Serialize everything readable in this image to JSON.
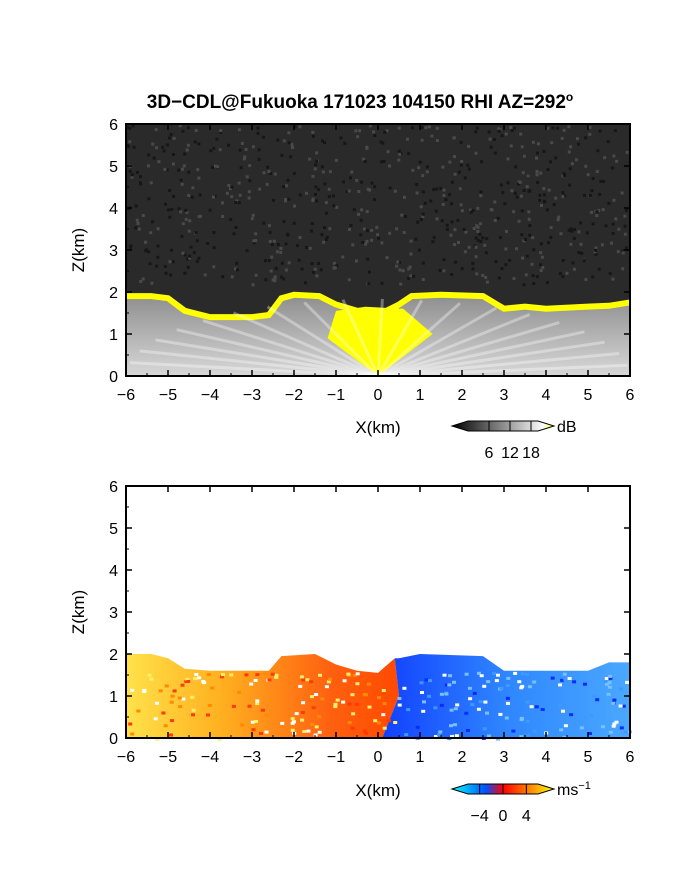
{
  "title": {
    "main": "3D−CDL@Fukuoka 171023 104150 RHI AZ=292",
    "superscript": "o"
  },
  "chart_data": [
    {
      "name": "top-panel",
      "type": "heatmap",
      "title": "3D−CDL@Fukuoka 171023 104150 RHI AZ=292°",
      "xlabel": "X(km)",
      "ylabel": "Z(km)",
      "xlim": [
        -6,
        6
      ],
      "ylim": [
        0,
        6
      ],
      "x_ticks": [
        -6,
        -5,
        -4,
        -3,
        -2,
        -1,
        0,
        1,
        2,
        3,
        4,
        5,
        6
      ],
      "x_tick_labels": [
        "−6",
        "−5",
        "−4",
        "−3",
        "−2",
        "−1",
        "0",
        "1",
        "2",
        "3",
        "4",
        "5",
        "6"
      ],
      "y_ticks": [
        0,
        1,
        2,
        3,
        4,
        5,
        6
      ],
      "y_tick_labels": [
        "0",
        "1",
        "2",
        "3",
        "4",
        "5",
        "6"
      ],
      "background_color": "#2a2a2a",
      "colorbar": {
        "unit": "dB",
        "range": [
          0,
          20
        ],
        "tick_values": [
          6,
          12,
          18
        ],
        "tick_labels": [
          "6",
          "12",
          "18"
        ],
        "colors": [
          "#000000",
          "#808080",
          "#ffffff",
          "#ffff00"
        ]
      },
      "signal_top_km": [
        [
          -6.0,
          1.95
        ],
        [
          -5.4,
          1.95
        ],
        [
          -5.0,
          1.9
        ],
        [
          -4.6,
          1.6
        ],
        [
          -4.0,
          1.45
        ],
        [
          -3.6,
          1.45
        ],
        [
          -3.0,
          1.45
        ],
        [
          -2.6,
          1.5
        ],
        [
          -2.3,
          1.9
        ],
        [
          -2.0,
          1.98
        ],
        [
          -1.4,
          1.95
        ],
        [
          -1.0,
          1.75
        ],
        [
          -0.5,
          1.6
        ],
        [
          0.0,
          1.5
        ],
        [
          0.5,
          1.75
        ],
        [
          0.8,
          1.95
        ],
        [
          1.5,
          1.98
        ],
        [
          2.5,
          1.95
        ],
        [
          3.0,
          1.65
        ],
        [
          3.5,
          1.7
        ],
        [
          4.0,
          1.65
        ],
        [
          5.0,
          1.7
        ],
        [
          5.5,
          1.72
        ],
        [
          6.0,
          1.8
        ]
      ]
    },
    {
      "name": "bottom-panel",
      "type": "heatmap",
      "xlabel": "X(km)",
      "ylabel": "Z(km)",
      "xlim": [
        -6,
        6
      ],
      "ylim": [
        0,
        6
      ],
      "x_ticks": [
        -6,
        -5,
        -4,
        -3,
        -2,
        -1,
        0,
        1,
        2,
        3,
        4,
        5,
        6
      ],
      "x_tick_labels": [
        "−6",
        "−5",
        "−4",
        "−3",
        "−2",
        "−1",
        "0",
        "1",
        "2",
        "3",
        "4",
        "5",
        "6"
      ],
      "y_ticks": [
        0,
        1,
        2,
        3,
        4,
        5,
        6
      ],
      "y_tick_labels": [
        "0",
        "1",
        "2",
        "3",
        "4",
        "5",
        "6"
      ],
      "background_color": "#ffffff",
      "colorbar": {
        "unit": "ms",
        "unit_superscript": "−1",
        "range": [
          -6,
          6
        ],
        "tick_values": [
          -4,
          0,
          4
        ],
        "tick_labels": [
          "−4",
          "0",
          "4"
        ],
        "colors": [
          "#00ffff",
          "#0050ff",
          "#ff0000",
          "#ffff00"
        ]
      },
      "signal_top_km": [
        [
          -6.0,
          2.0
        ],
        [
          -5.4,
          2.0
        ],
        [
          -5.0,
          1.9
        ],
        [
          -4.6,
          1.65
        ],
        [
          -4.0,
          1.6
        ],
        [
          -3.0,
          1.6
        ],
        [
          -2.6,
          1.6
        ],
        [
          -2.3,
          1.95
        ],
        [
          -1.5,
          2.0
        ],
        [
          -1.0,
          1.75
        ],
        [
          -0.5,
          1.6
        ],
        [
          0.0,
          1.55
        ],
        [
          0.5,
          1.9
        ],
        [
          1.0,
          2.0
        ],
        [
          2.5,
          1.95
        ],
        [
          3.0,
          1.6
        ],
        [
          4.0,
          1.6
        ],
        [
          5.0,
          1.6
        ],
        [
          5.5,
          1.8
        ],
        [
          6.0,
          1.8
        ]
      ],
      "velocity_sign_change_x_km": 0.4
    }
  ]
}
